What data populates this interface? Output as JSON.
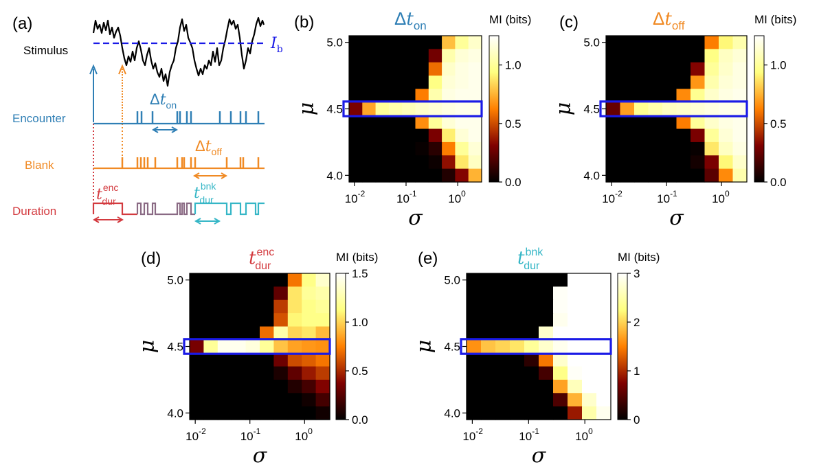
{
  "panel_a": {
    "letter": "(a)",
    "stimulus_label": "Stimulus",
    "threshold_label": "I",
    "threshold_sub": "b",
    "encounter_label": "Encounter",
    "blank_label": "Blank",
    "duration_label": "Duration",
    "delta": "Δ",
    "t": "t",
    "on_sub": "on",
    "off_sub": "off",
    "dur_sub": "dur",
    "enc_sup": "enc",
    "bnk_sup": "bnk",
    "colors": {
      "encounter": "#2f7fb5",
      "blank": "#f08a24",
      "duration_enc": "#d33a3f",
      "duration_bnk": "#35b6c6",
      "threshold": "#1a1ae6"
    }
  },
  "chart_data": [
    {
      "type": "heatmap",
      "letter": "(b)",
      "title_prefix": "Δ",
      "title_var": "t",
      "title_sub": "on",
      "title_sup": "",
      "title_color": "#2f7fb5",
      "xlabel": "σ",
      "ylabel": "μ",
      "x_ticklabels": [
        [
          "10",
          "-2"
        ],
        [
          "10",
          "-1"
        ],
        [
          "10",
          "0"
        ]
      ],
      "y_ticklabels": [
        "5.0",
        "4.5",
        "4.0"
      ],
      "colorbar_label": "MI (bits)",
      "colorbar_ticks": [
        "0.0",
        "0.5",
        "1.0"
      ],
      "colorbar_tick_values": [
        0,
        0.5,
        1.0
      ],
      "vmax": 1.25,
      "highlight_row": 5,
      "values": [
        [
          0,
          0,
          0,
          0,
          0,
          0,
          0,
          0.78,
          1.0,
          1.12
        ],
        [
          0,
          0,
          0,
          0,
          0,
          0,
          0.28,
          1.05,
          1.15,
          1.18
        ],
        [
          0,
          0,
          0,
          0,
          0,
          0,
          0.58,
          1.12,
          1.18,
          1.2
        ],
        [
          0,
          0,
          0,
          0,
          0,
          0,
          0.95,
          1.15,
          1.18,
          1.2
        ],
        [
          0,
          0,
          0,
          0,
          0,
          0.62,
          1.05,
          1.18,
          1.2,
          1.2
        ],
        [
          0.3,
          0.72,
          1.0,
          1.05,
          1.08,
          1.12,
          1.15,
          1.18,
          1.2,
          1.2
        ],
        [
          0,
          0,
          0,
          0,
          0,
          0.66,
          1.0,
          1.15,
          1.2,
          1.2
        ],
        [
          0,
          0,
          0,
          0,
          0,
          0,
          0.3,
          0.9,
          1.15,
          1.2
        ],
        [
          0,
          0,
          0,
          0,
          0,
          0.02,
          0.1,
          0.62,
          1.0,
          1.15
        ],
        [
          0,
          0,
          0,
          0,
          0,
          0,
          0.03,
          0.35,
          0.88,
          1.1
        ],
        [
          0,
          0,
          0,
          0,
          0,
          0,
          0,
          0.08,
          0.32,
          0.75
        ]
      ]
    },
    {
      "type": "heatmap",
      "letter": "(c)",
      "title_prefix": "Δ",
      "title_var": "t",
      "title_sub": "off",
      "title_sup": "",
      "title_color": "#f08a24",
      "xlabel": "σ",
      "ylabel": "μ",
      "x_ticklabels": [
        [
          "10",
          "-2"
        ],
        [
          "10",
          "-1"
        ],
        [
          "10",
          "0"
        ]
      ],
      "y_ticklabels": [
        "5.0",
        "4.5",
        "4.0"
      ],
      "colorbar_label": "MI (bits)",
      "colorbar_ticks": [
        "0.0",
        "0.5",
        "1.0"
      ],
      "colorbar_tick_values": [
        0,
        0.5,
        1.0
      ],
      "vmax": 1.25,
      "highlight_row": 5,
      "values": [
        [
          0,
          0,
          0,
          0,
          0,
          0,
          0,
          0.62,
          0.92,
          1.05
        ],
        [
          0,
          0,
          0,
          0,
          0,
          0,
          0,
          0.95,
          1.1,
          1.15
        ],
        [
          0,
          0,
          0,
          0,
          0,
          0,
          0.32,
          1.0,
          1.12,
          1.18
        ],
        [
          0,
          0,
          0,
          0,
          0,
          0,
          0.68,
          1.05,
          1.15,
          1.18
        ],
        [
          0,
          0,
          0,
          0,
          0,
          0.65,
          0.98,
          1.12,
          1.18,
          1.2
        ],
        [
          0.25,
          0.7,
          0.98,
          1.05,
          1.1,
          1.12,
          1.15,
          1.18,
          1.2,
          1.2
        ],
        [
          0,
          0,
          0,
          0,
          0,
          0.62,
          1.0,
          1.12,
          1.18,
          1.2
        ],
        [
          0,
          0,
          0,
          0,
          0,
          0,
          0.3,
          1.0,
          1.15,
          1.2
        ],
        [
          0,
          0,
          0,
          0,
          0,
          0,
          0.02,
          0.88,
          1.1,
          1.18
        ],
        [
          0,
          0,
          0,
          0,
          0,
          0,
          0.05,
          0.3,
          0.92,
          1.12
        ],
        [
          0,
          0,
          0,
          0,
          0,
          0,
          0,
          0.22,
          0.65,
          1.05
        ]
      ]
    },
    {
      "type": "heatmap",
      "letter": "(d)",
      "title_prefix": "",
      "title_var": "t",
      "title_sub": "dur",
      "title_sup": "enc",
      "title_color": "#d33a3f",
      "xlabel": "σ",
      "ylabel": "μ",
      "x_ticklabels": [
        [
          "10",
          "-2"
        ],
        [
          "10",
          "-1"
        ],
        [
          "10",
          "0"
        ]
      ],
      "y_ticklabels": [
        "5.0",
        "4.5",
        "4.0"
      ],
      "colorbar_label": "MI (bits)",
      "colorbar_ticks": [
        "0.0",
        "0.5",
        "1.0",
        "1.5"
      ],
      "colorbar_tick_values": [
        0,
        0.5,
        1.0,
        1.5
      ],
      "vmax": 1.5,
      "highlight_row": 5,
      "values": [
        [
          0,
          0,
          0,
          0,
          0,
          0,
          0,
          0.72,
          1.15,
          1.35
        ],
        [
          0,
          0,
          0,
          0,
          0,
          0,
          0.28,
          1.05,
          1.2,
          1.25
        ],
        [
          0,
          0,
          0,
          0,
          0,
          0,
          0.55,
          1.05,
          1.15,
          1.2
        ],
        [
          0,
          0,
          0,
          0,
          0,
          0,
          0.62,
          1.1,
          1.15,
          1.15
        ],
        [
          0,
          0,
          0,
          0,
          0,
          0.7,
          1.25,
          1.0,
          1.05,
          0.92
        ],
        [
          0.35,
          1.2,
          1.45,
          1.45,
          1.4,
          1.2,
          0.95,
          0.85,
          0.82,
          0.8
        ],
        [
          0,
          0,
          0,
          0,
          0,
          0,
          0.32,
          0.6,
          0.65,
          0.72
        ],
        [
          0,
          0,
          0,
          0,
          0,
          0,
          0.08,
          0.28,
          0.45,
          0.55
        ],
        [
          0,
          0,
          0,
          0,
          0,
          0,
          0,
          0.1,
          0.2,
          0.38
        ],
        [
          0,
          0,
          0,
          0,
          0,
          0,
          0,
          0,
          0.05,
          0.2
        ],
        [
          0,
          0,
          0,
          0,
          0,
          0,
          0,
          0,
          0,
          0.05
        ]
      ]
    },
    {
      "type": "heatmap",
      "letter": "(e)",
      "title_prefix": "",
      "title_var": "t",
      "title_sub": "dur",
      "title_sup": "bnk",
      "title_color": "#35b6c6",
      "xlabel": "σ",
      "ylabel": "μ",
      "x_ticklabels": [
        [
          "10",
          "-2"
        ],
        [
          "10",
          "-1"
        ],
        [
          "10",
          "0"
        ]
      ],
      "y_ticklabels": [
        "5.0",
        "4.5",
        "4.0"
      ],
      "colorbar_label": "MI (bits)",
      "colorbar_ticks": [
        "0",
        "1",
        "2",
        "3"
      ],
      "colorbar_tick_values": [
        0,
        1,
        2,
        3
      ],
      "vmax": 3,
      "highlight_row": 5,
      "values": [
        [
          0,
          0,
          0,
          0,
          0,
          0,
          0,
          3,
          3,
          3
        ],
        [
          0,
          0,
          0,
          0,
          0,
          0,
          2.95,
          3,
          3,
          3
        ],
        [
          0,
          0,
          0,
          0,
          0,
          0,
          2.95,
          3,
          3,
          3
        ],
        [
          0,
          0,
          0,
          0,
          0,
          0,
          2.9,
          3,
          3,
          3
        ],
        [
          0,
          0,
          0,
          0,
          0,
          2.7,
          3,
          3,
          3,
          3
        ],
        [
          1.6,
          1.9,
          2.0,
          2.1,
          2.4,
          2.7,
          2.9,
          3,
          3,
          3
        ],
        [
          0,
          0,
          0,
          0,
          0.25,
          1.45,
          2.7,
          3,
          3,
          3
        ],
        [
          0,
          0,
          0,
          0,
          0,
          0.4,
          2.3,
          2.95,
          3,
          3
        ],
        [
          0,
          0,
          0,
          0,
          0,
          0,
          1.7,
          2.6,
          3,
          3
        ],
        [
          0,
          0,
          0,
          0,
          0,
          0,
          0.45,
          1.8,
          2.7,
          3
        ],
        [
          0,
          0,
          0,
          0,
          0,
          0,
          0,
          0.9,
          2.5,
          2.9
        ]
      ]
    }
  ]
}
